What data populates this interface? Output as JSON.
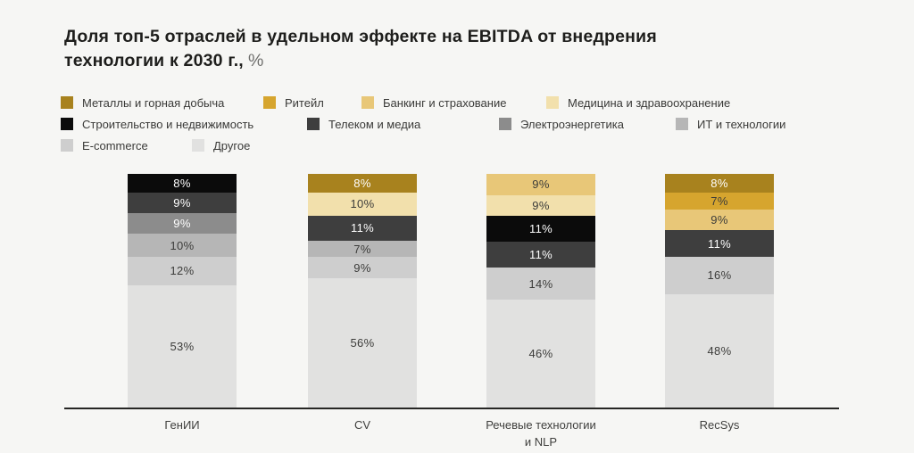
{
  "chart_data": {
    "type": "bar",
    "subtype": "stacked-percent",
    "title": "Доля топ-5 отраслей в удельном эффекте на EBITDA от внедрения технологии к 2030 г.,",
    "unit_suffix": "%",
    "legend_position": "top",
    "grid": false,
    "categories": [
      {
        "name": "Металлы и горная добыча",
        "color": "#a8821e"
      },
      {
        "name": "Ритейл",
        "color": "#d6a52e"
      },
      {
        "name": "Банкинг и страхование",
        "color": "#e8c778"
      },
      {
        "name": "Медицина и здравоохранение",
        "color": "#f2e0ac"
      },
      {
        "name": "Строительство и недвижимость",
        "color": "#0b0b0b"
      },
      {
        "name": "Телеком и медиа",
        "color": "#3e3e3e"
      },
      {
        "name": "Электроэнергетика",
        "color": "#8c8c8c"
      },
      {
        "name": "ИТ и технологии",
        "color": "#b6b6b6"
      },
      {
        "name": "E-commerce",
        "color": "#cecece"
      },
      {
        "name": "Другое",
        "color": "#e1e1e0"
      }
    ],
    "bars": [
      {
        "label": "ГенИИ",
        "segments": [
          {
            "industry": "Строительство и недвижимость",
            "value": 8
          },
          {
            "industry": "Телеком и медиа",
            "value": 9
          },
          {
            "industry": "Электроэнергетика",
            "value": 9
          },
          {
            "industry": "ИТ и технологии",
            "value": 10
          },
          {
            "industry": "E-commerce",
            "value": 12
          },
          {
            "industry": "Другое",
            "value": 53
          }
        ]
      },
      {
        "label": "CV",
        "segments": [
          {
            "industry": "Металлы и горная добыча",
            "value": 8
          },
          {
            "industry": "Медицина и здравоохранение",
            "value": 10
          },
          {
            "industry": "Телеком и медиа",
            "value": 11
          },
          {
            "industry": "ИТ и технологии",
            "value": 7
          },
          {
            "industry": "E-commerce",
            "value": 9
          },
          {
            "industry": "Другое",
            "value": 56
          }
        ]
      },
      {
        "label": "Речевые технологии\nи NLP",
        "segments": [
          {
            "industry": "Банкинг и страхование",
            "value": 9
          },
          {
            "industry": "Медицина и здравоохранение",
            "value": 9
          },
          {
            "industry": "Строительство и недвижимость",
            "value": 11
          },
          {
            "industry": "Телеком и медиа",
            "value": 11
          },
          {
            "industry": "E-commerce",
            "value": 14
          },
          {
            "industry": "Другое",
            "value": 46
          }
        ]
      },
      {
        "label": "RecSys",
        "segments": [
          {
            "industry": "Металлы и горная добыча",
            "value": 8
          },
          {
            "industry": "Ритейл",
            "value": 7
          },
          {
            "industry": "Банкинг и страхование",
            "value": 9
          },
          {
            "industry": "Телеком и медиа",
            "value": 11
          },
          {
            "industry": "E-commerce",
            "value": 16
          },
          {
            "industry": "Другое",
            "value": 48
          }
        ]
      }
    ],
    "label_colors": {
      "dark_text": "#3c3c3a",
      "light_text": "#ffffff"
    },
    "axis_line_color": "#262624",
    "background_color": "#f6f6f4"
  }
}
